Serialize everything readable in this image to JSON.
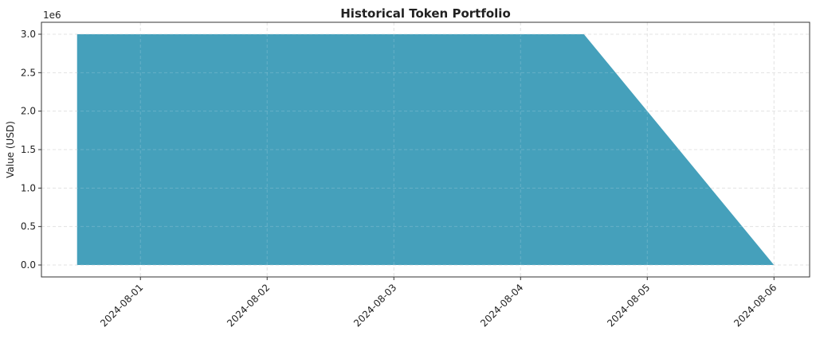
{
  "chart_data": {
    "type": "area",
    "title": "Historical Token Portfolio",
    "xlabel": "",
    "ylabel": "Value (USD)",
    "y_offset_label": "1e6",
    "x_type": "datetime",
    "xlim": [
      "2024-07-31T05:15",
      "2024-08-06T06:45"
    ],
    "ylim": [
      -155000,
      3155000
    ],
    "x_ticks": [
      "2024-08-01",
      "2024-08-02",
      "2024-08-03",
      "2024-08-04",
      "2024-08-05",
      "2024-08-06"
    ],
    "y_ticks": [
      0,
      500000,
      1000000,
      1500000,
      2000000,
      2500000,
      3000000
    ],
    "y_tick_labels": [
      "0.0",
      "0.5",
      "1.0",
      "1.5",
      "2.0",
      "2.5",
      "3.0"
    ],
    "grid": true,
    "fill_color": "#45a0bb",
    "series": [
      {
        "x": [
          "2024-07-31T12:00",
          "2024-08-04T12:00",
          "2024-08-05T00:00",
          "2024-08-06T00:00"
        ],
        "values": [
          3000000,
          3000000,
          2000000,
          0
        ]
      }
    ]
  }
}
